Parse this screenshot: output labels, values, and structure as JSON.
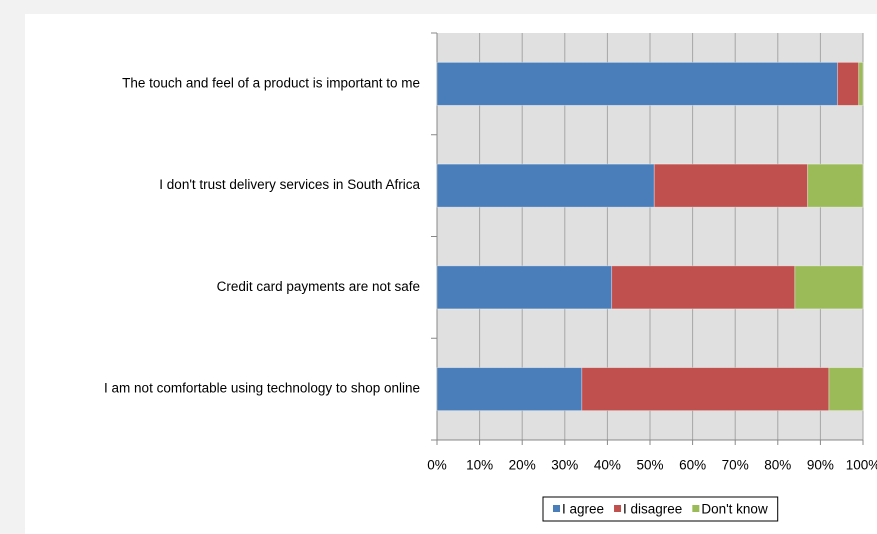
{
  "chart_data": {
    "type": "stacked-barh",
    "categories": [
      "The touch and feel of a product is important to me",
      "I don't trust delivery services in South Africa",
      "Credit card payments are not safe",
      "I am not comfortable using technology to shop online"
    ],
    "series": [
      {
        "name": "I agree",
        "color": "#4a7ebb",
        "values": [
          94,
          51,
          41,
          34
        ]
      },
      {
        "name": "I disagree",
        "color": "#c0504d",
        "values": [
          5,
          36,
          43,
          58
        ]
      },
      {
        "name": "Don't know",
        "color": "#9bbb59",
        "values": [
          1,
          13,
          16,
          8
        ]
      }
    ],
    "xlim": [
      0,
      100
    ],
    "xticks": [
      {
        "value": 0,
        "label": "0%"
      },
      {
        "value": 10,
        "label": "10%"
      },
      {
        "value": 20,
        "label": "20%"
      },
      {
        "value": 30,
        "label": "30%"
      },
      {
        "value": 40,
        "label": "40%"
      },
      {
        "value": 50,
        "label": "50%"
      },
      {
        "value": 60,
        "label": "60%"
      },
      {
        "value": 70,
        "label": "70%"
      },
      {
        "value": 80,
        "label": "80%"
      },
      {
        "value": 90,
        "label": "90%"
      },
      {
        "value": 100,
        "label": "100%"
      }
    ],
    "grid": true,
    "legend": "bottom-right"
  }
}
